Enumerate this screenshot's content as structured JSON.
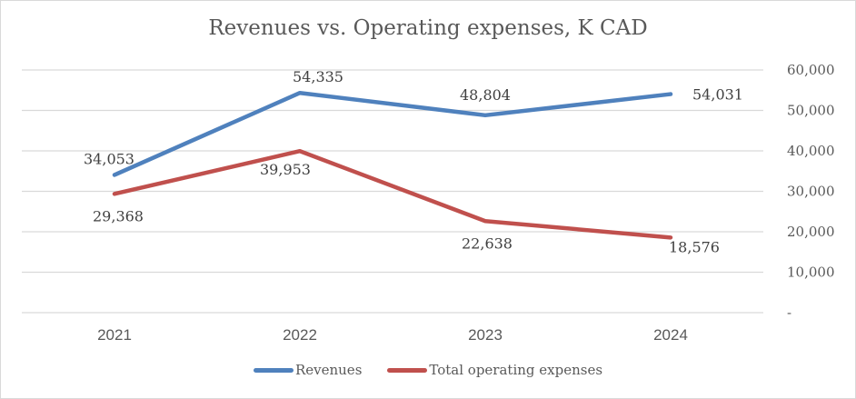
{
  "chart_data": {
    "type": "line",
    "title": "Revenues vs. Operating expenses, K CAD",
    "categories": [
      "2021",
      "2022",
      "2023",
      "2024"
    ],
    "series": [
      {
        "name": "Revenues",
        "color": "#4f81bd",
        "values": [
          34053,
          54335,
          48804,
          54031
        ],
        "labels": [
          "34,053",
          "54,335",
          "48,804",
          "54,031"
        ]
      },
      {
        "name": "Total operating expenses",
        "color": "#c0504d",
        "values": [
          29368,
          39953,
          22638,
          18576
        ],
        "labels": [
          "29,368",
          "39,953",
          "22,638",
          "18,576"
        ]
      }
    ],
    "y_ticks": [
      {
        "value": 0,
        "label": "-"
      },
      {
        "value": 10000,
        "label": "10,000"
      },
      {
        "value": 20000,
        "label": "20,000"
      },
      {
        "value": 30000,
        "label": "30,000"
      },
      {
        "value": 40000,
        "label": "40,000"
      },
      {
        "value": 50000,
        "label": "50,000"
      },
      {
        "value": 60000,
        "label": "60,000"
      }
    ],
    "ylim": [
      0,
      60000
    ],
    "y_axis_side": "right",
    "grid": true,
    "legend_position": "bottom",
    "xlabel": "",
    "ylabel": ""
  }
}
